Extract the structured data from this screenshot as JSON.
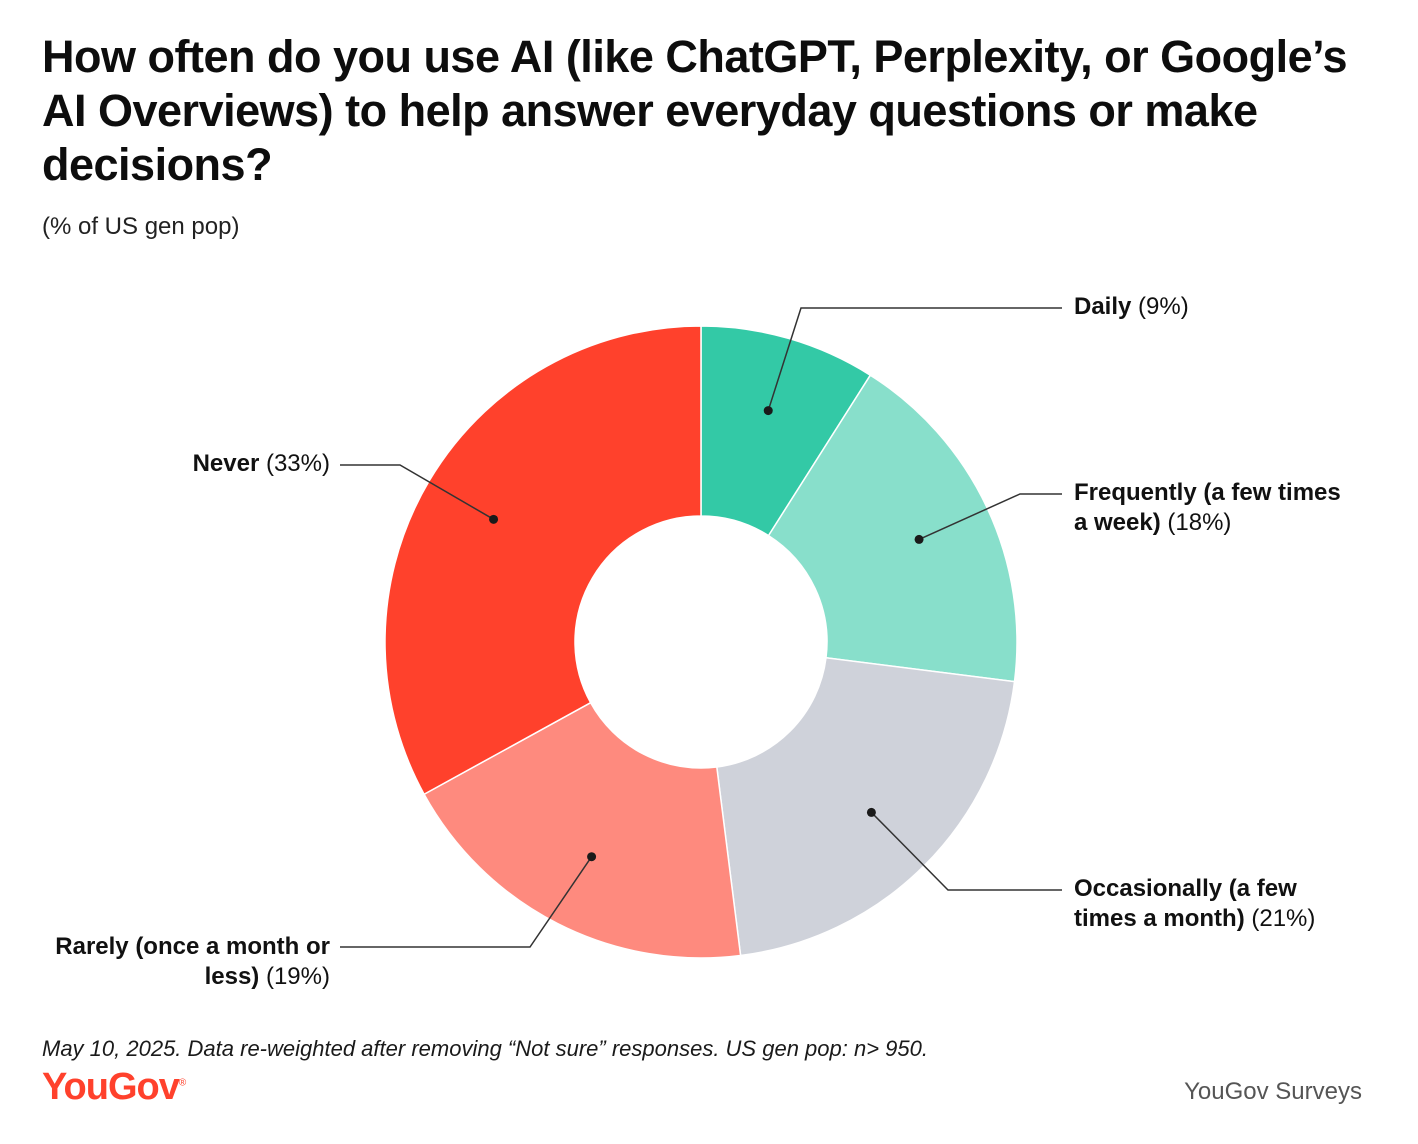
{
  "chart_data": {
    "type": "pie",
    "donut": true,
    "title": "How often do you use AI (like ChatGPT, Perplexity, or Google’s AI Overviews) to help answer everyday questions or make decisions?",
    "subtitle": "(% of US gen pop)",
    "slices": [
      {
        "label": "Daily",
        "pct_text": "(9%)",
        "value": 9,
        "color": "#33c9a6"
      },
      {
        "label": "Frequently (a few times a week)",
        "pct_text": "(18%)",
        "value": 18,
        "color": "#88dfcb"
      },
      {
        "label": "Occasionally (a few times a month)",
        "pct_text": "(21%)",
        "value": 21,
        "color": "#cfd2da"
      },
      {
        "label": "Rarely (once a month or less)",
        "pct_text": "(19%)",
        "value": 19,
        "color": "#fe8a7e"
      },
      {
        "label": "Never",
        "pct_text": "(33%)",
        "value": 33,
        "color": "#ff412c"
      }
    ],
    "footnote": "May 10, 2025. Data re-weighted after removing “Not sure” responses. US gen pop: n> 950."
  },
  "brand": {
    "logo": "YouGov",
    "logo_mark": "®",
    "credit": "YouGov Surveys"
  }
}
